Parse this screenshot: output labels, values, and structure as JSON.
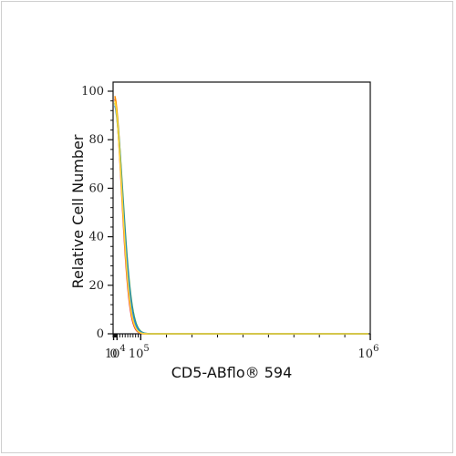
{
  "chart_data": {
    "type": "line",
    "title": "",
    "xlabel": "CD5-ABflo® 594",
    "ylabel": "Relative Cell Number",
    "x_scale": "biexponential",
    "xlim": [
      -1000,
      1000000
    ],
    "ylim": [
      0,
      100
    ],
    "y_ticks": [
      "0",
      "20",
      "40",
      "60",
      "80",
      "100"
    ],
    "x_ticks": [
      {
        "value": 0,
        "label": "0"
      },
      {
        "value": 10000,
        "label": "10^4"
      },
      {
        "value": 100000,
        "label": "10^5"
      },
      {
        "value": 1000000,
        "label": "10^6"
      }
    ],
    "grid": false,
    "legend": "none",
    "series": [
      {
        "color": "#e53935",
        "peak_x": 210,
        "peak_y": 98,
        "width": 130
      },
      {
        "color": "#ff8f00",
        "peak_x": 195,
        "peak_y": 99,
        "width": 140
      },
      {
        "color": "#43a047",
        "peak_x": 180,
        "peak_y": 96,
        "width": 150
      },
      {
        "color": "#1e88e5",
        "peak_x": 185,
        "peak_y": 95,
        "width": 145
      },
      {
        "color": "#fdd835",
        "peak_x": 200,
        "peak_y": 97,
        "width": 135
      }
    ]
  }
}
